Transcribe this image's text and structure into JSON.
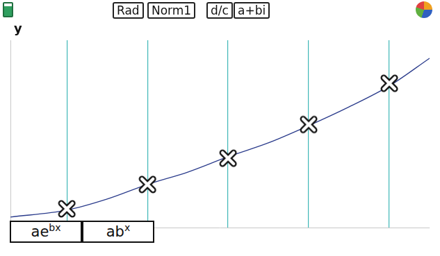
{
  "status_bar": {
    "indicators": [
      "Rad",
      "Norm1",
      "d/c",
      "a+bi"
    ]
  },
  "chart_data": {
    "type": "scatter",
    "ylabel": "y",
    "series": [
      {
        "type": "scatter",
        "marker": "x",
        "color": "#111111",
        "x": [
          1,
          2,
          3,
          4,
          5
        ],
        "values": [
          1.0,
          2.3,
          3.7,
          5.5,
          7.7
        ]
      },
      {
        "type": "line",
        "line_style": "solid",
        "color": "#2b3c8c",
        "x": [
          0.3,
          1,
          1.5,
          2,
          2.5,
          3,
          3.5,
          4,
          4.5,
          5,
          5.5
        ],
        "values": [
          0.56,
          0.93,
          1.52,
          2.3,
          2.96,
          3.78,
          4.52,
          5.44,
          6.44,
          7.56,
          9.04
        ]
      }
    ],
    "xlim": [
      0.3,
      5.5
    ],
    "ylim": [
      0,
      10
    ],
    "xticks": [
      1,
      2,
      3,
      4,
      5
    ],
    "yticks": [],
    "grid": "x",
    "tick_labels": false
  },
  "function_menu": [
    {
      "text": "ae",
      "superscript": "bx"
    },
    {
      "text": "ab",
      "superscript": "x"
    }
  ]
}
